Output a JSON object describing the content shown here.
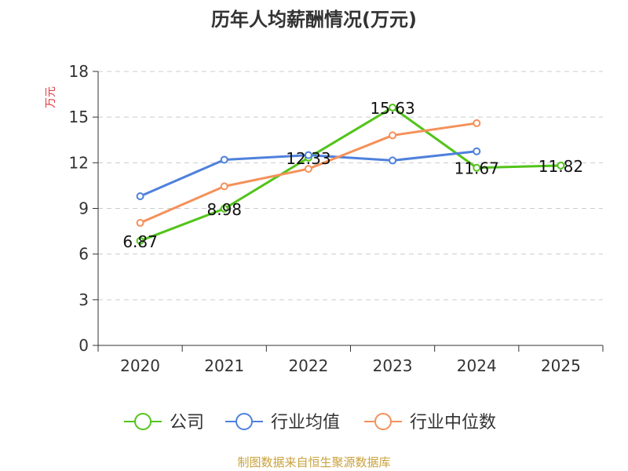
{
  "chart_data": {
    "type": "line",
    "title": "历年人均薪酬情况(万元)",
    "ylabel": "万元",
    "categories": [
      "2020",
      "2021",
      "2022",
      "2023",
      "2024",
      "2025"
    ],
    "ylim": [
      0,
      18
    ],
    "yticks": [
      0,
      3,
      6,
      9,
      12,
      15,
      18
    ],
    "grid": true,
    "legend_position": "bottom",
    "series": [
      {
        "name": "公司",
        "color": "#52c41a",
        "values": [
          6.87,
          8.98,
          12.33,
          15.63,
          11.67,
          11.82
        ],
        "labels": [
          "6.87",
          "8.98",
          "12.33",
          "15.63",
          "11.67",
          "11.82"
        ]
      },
      {
        "name": "行业均值",
        "color": "#4f81dc",
        "values": [
          9.8,
          12.2,
          12.5,
          12.15,
          12.75,
          null
        ]
      },
      {
        "name": "行业中位数",
        "color": "#f4915a",
        "values": [
          8.05,
          10.45,
          11.6,
          13.8,
          14.6,
          null
        ]
      }
    ],
    "colors": {
      "ylabel": "#e0393e",
      "source": "#c8a23c",
      "axis": "#333333",
      "grid": "#cccccc"
    }
  },
  "source": "制图数据来自恒生聚源数据库"
}
